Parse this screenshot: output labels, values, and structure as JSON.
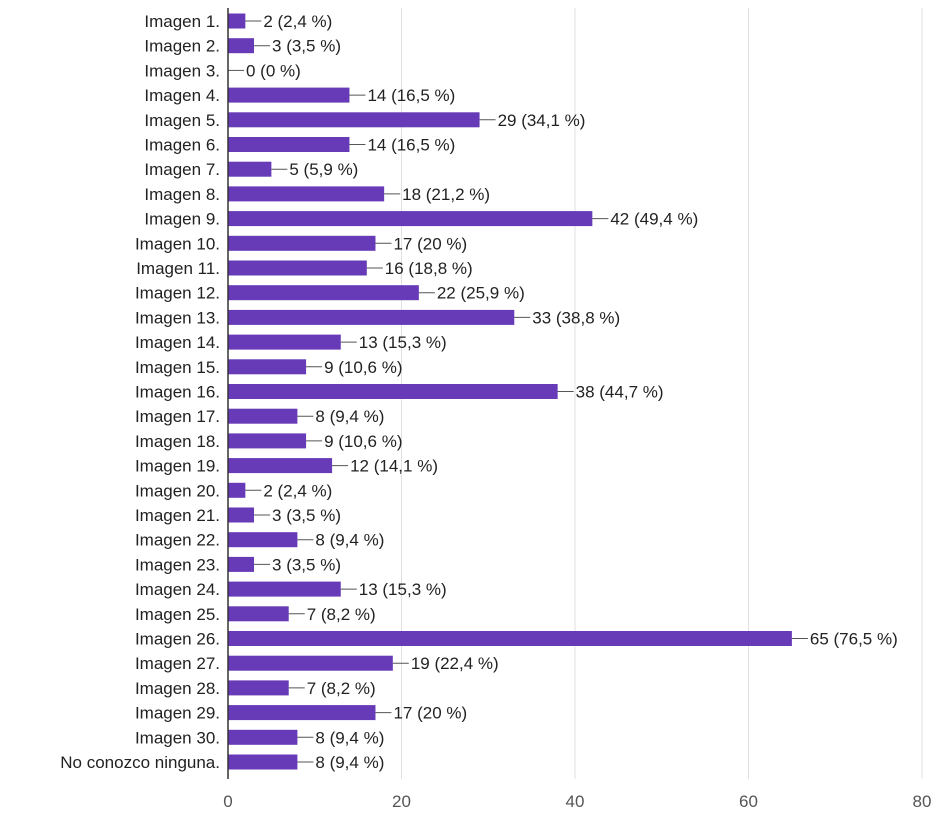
{
  "chart_data": {
    "type": "bar",
    "orientation": "horizontal",
    "categories": [
      "Imagen 1.",
      "Imagen 2.",
      "Imagen 3.",
      "Imagen 4.",
      "Imagen 5.",
      "Imagen 6.",
      "Imagen 7.",
      "Imagen 8.",
      "Imagen 9.",
      "Imagen 10.",
      "Imagen 11.",
      "Imagen 12.",
      "Imagen 13.",
      "Imagen 14.",
      "Imagen 15.",
      "Imagen 16.",
      "Imagen 17.",
      "Imagen 18.",
      "Imagen 19.",
      "Imagen 20.",
      "Imagen 21.",
      "Imagen 22.",
      "Imagen 23.",
      "Imagen 24.",
      "Imagen 25.",
      "Imagen 26.",
      "Imagen 27.",
      "Imagen 28.",
      "Imagen 29.",
      "Imagen 30.",
      "No conozco ninguna."
    ],
    "values": [
      2,
      3,
      0,
      14,
      29,
      14,
      5,
      18,
      42,
      17,
      16,
      22,
      33,
      13,
      9,
      38,
      8,
      9,
      12,
      2,
      3,
      8,
      3,
      13,
      7,
      65,
      19,
      7,
      17,
      8,
      8
    ],
    "data_labels": [
      "2 (2,4 %)",
      "3 (3,5 %)",
      "0 (0 %)",
      "14 (16,5 %)",
      "29 (34,1 %)",
      "14 (16,5 %)",
      "5 (5,9 %)",
      "18 (21,2 %)",
      "42 (49,4 %)",
      "17 (20 %)",
      "16 (18,8 %)",
      "22 (25,9 %)",
      "33 (38,8 %)",
      "13 (15,3 %)",
      "9 (10,6 %)",
      "38 (44,7 %)",
      "8 (9,4 %)",
      "9 (10,6 %)",
      "12 (14,1 %)",
      "2 (2,4 %)",
      "3 (3,5 %)",
      "8 (9,4 %)",
      "3 (3,5 %)",
      "13 (15,3 %)",
      "7 (8,2 %)",
      "65 (76,5 %)",
      "19 (22,4 %)",
      "7 (8,2 %)",
      "17 (20 %)",
      "8 (9,4 %)",
      "8 (9,4 %)"
    ],
    "xlim": [
      0,
      80
    ],
    "xticks": [
      "0",
      "20",
      "40",
      "60",
      "80"
    ],
    "title": "",
    "xlabel": "",
    "ylabel": "",
    "grid": true,
    "colors": {
      "bar": "#673ab7",
      "grid": "#e0e0e0",
      "axis": "#333333",
      "leader": "#555555"
    }
  }
}
